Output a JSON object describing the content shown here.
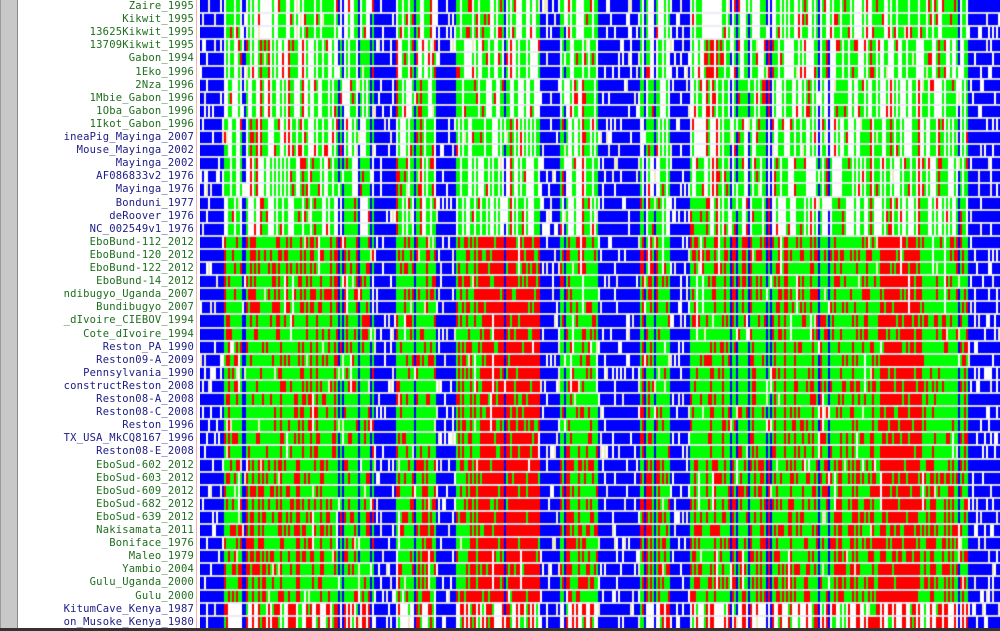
{
  "colors": {
    "A": "#ff0000",
    "B": "#00ff00",
    "C": "#0000ff",
    "gap": "#f0e8c0",
    "empty": "#ffffff",
    "label_green": "#1e6e1e",
    "label_navy": "#1c1c86"
  },
  "sequences": [
    {
      "name": "Zaire_1995",
      "c": "g",
      "grp": 0
    },
    {
      "name": "Kikwit_1995",
      "c": "g",
      "grp": 0
    },
    {
      "name": "13625Kikwit_1995",
      "c": "g",
      "grp": 0
    },
    {
      "name": "13709Kikwit_1995",
      "c": "g",
      "grp": 0
    },
    {
      "name": "Gabon_1994",
      "c": "g",
      "grp": 0
    },
    {
      "name": "1Eko_1996",
      "c": "g",
      "grp": 0
    },
    {
      "name": "2Nza_1996",
      "c": "g",
      "grp": 0
    },
    {
      "name": "1Mbie_Gabon_1996",
      "c": "g",
      "grp": 0
    },
    {
      "name": "1Oba_Gabon_1996",
      "c": "g",
      "grp": 0
    },
    {
      "name": "1Ikot_Gabon_1996",
      "c": "g",
      "grp": 0
    },
    {
      "name": "ineaPig_Mayinga_2007",
      "c": "n",
      "grp": 0
    },
    {
      "name": "Mouse_Mayinga_2002",
      "c": "n",
      "grp": 0
    },
    {
      "name": "Mayinga_2002",
      "c": "n",
      "grp": 0
    },
    {
      "name": "AF086833v2_1976",
      "c": "n",
      "grp": 0
    },
    {
      "name": "Mayinga_1976",
      "c": "n",
      "grp": 0
    },
    {
      "name": "Bonduni_1977",
      "c": "n",
      "grp": 0
    },
    {
      "name": "deRoover_1976",
      "c": "n",
      "grp": 0
    },
    {
      "name": "NC_002549v1_1976",
      "c": "n",
      "grp": 0
    },
    {
      "name": "EboBund-112_2012",
      "c": "g",
      "grp": 1
    },
    {
      "name": "EboBund-120_2012",
      "c": "g",
      "grp": 1
    },
    {
      "name": "EboBund-122_2012",
      "c": "g",
      "grp": 1
    },
    {
      "name": "EboBund-14_2012",
      "c": "g",
      "grp": 1
    },
    {
      "name": "ndibugyo_Uganda_2007",
      "c": "g",
      "grp": 1
    },
    {
      "name": "Bundibugyo_2007",
      "c": "g",
      "grp": 1
    },
    {
      "name": "_dIvoire_CIEBOV_1994",
      "c": "g",
      "grp": 2
    },
    {
      "name": "Cote_dIvoire_1994",
      "c": "g",
      "grp": 2
    },
    {
      "name": "Reston_PA_1990",
      "c": "n",
      "grp": 3
    },
    {
      "name": "Reston09-A_2009",
      "c": "n",
      "grp": 3
    },
    {
      "name": "Pennsylvania_1990",
      "c": "n",
      "grp": 3
    },
    {
      "name": "constructReston_2008",
      "c": "n",
      "grp": 3
    },
    {
      "name": "Reston08-A_2008",
      "c": "n",
      "grp": 3
    },
    {
      "name": "Reston08-C_2008",
      "c": "n",
      "grp": 3
    },
    {
      "name": "Reston_1996",
      "c": "n",
      "grp": 3
    },
    {
      "name": "TX_USA_MkCQ8167_1996",
      "c": "n",
      "grp": 3
    },
    {
      "name": "Reston08-E_2008",
      "c": "n",
      "grp": 3
    },
    {
      "name": "EboSud-602_2012",
      "c": "g",
      "grp": 4
    },
    {
      "name": "EboSud-603_2012",
      "c": "g",
      "grp": 4
    },
    {
      "name": "EboSud-609_2012",
      "c": "g",
      "grp": 4
    },
    {
      "name": "EboSud-682_2012",
      "c": "g",
      "grp": 4
    },
    {
      "name": "EboSud-639_2012",
      "c": "g",
      "grp": 4
    },
    {
      "name": "Nakisamata_2011",
      "c": "g",
      "grp": 4
    },
    {
      "name": "Boniface_1976",
      "c": "g",
      "grp": 4
    },
    {
      "name": "Maleo_1979",
      "c": "g",
      "grp": 4
    },
    {
      "name": "Yambio_2004",
      "c": "g",
      "grp": 4
    },
    {
      "name": "Gulu_Uganda_2000",
      "c": "g",
      "grp": 4
    },
    {
      "name": "Gulu_2000",
      "c": "g",
      "grp": 4
    },
    {
      "name": "KitumCave_Kenya_1987",
      "c": "n",
      "grp": 5
    },
    {
      "name": "on_Musoke_Kenya_1980",
      "c": "n",
      "grp": 5
    }
  ]
}
